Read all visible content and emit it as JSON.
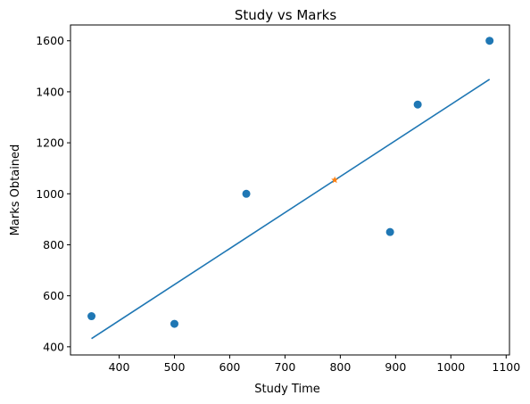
{
  "chart_data": {
    "type": "scatter",
    "title": "Study vs Marks",
    "xlabel": "Study Time",
    "ylabel": "Marks Obtained",
    "xlim": [
      312,
      1106
    ],
    "ylim": [
      368,
      1662
    ],
    "xticks": [
      400,
      500,
      600,
      700,
      800,
      900,
      1000,
      1100
    ],
    "yticks": [
      400,
      600,
      800,
      1000,
      1200,
      1400,
      1600
    ],
    "grid": false,
    "series": [
      {
        "kind": "scatter",
        "marker": "circle",
        "color": "#1f77b4",
        "points": [
          {
            "x": 350,
            "y": 520
          },
          {
            "x": 500,
            "y": 490
          },
          {
            "x": 630,
            "y": 1000
          },
          {
            "x": 890,
            "y": 850
          },
          {
            "x": 940,
            "y": 1350
          },
          {
            "x": 1070,
            "y": 1600
          }
        ]
      },
      {
        "kind": "line",
        "color": "#1f77b4",
        "points": [
          {
            "x": 350,
            "y": 432
          },
          {
            "x": 1070,
            "y": 1449
          }
        ]
      },
      {
        "kind": "scatter",
        "marker": "star",
        "color": "#ff7f0e",
        "points": [
          {
            "x": 790,
            "y": 1054
          }
        ]
      }
    ]
  }
}
